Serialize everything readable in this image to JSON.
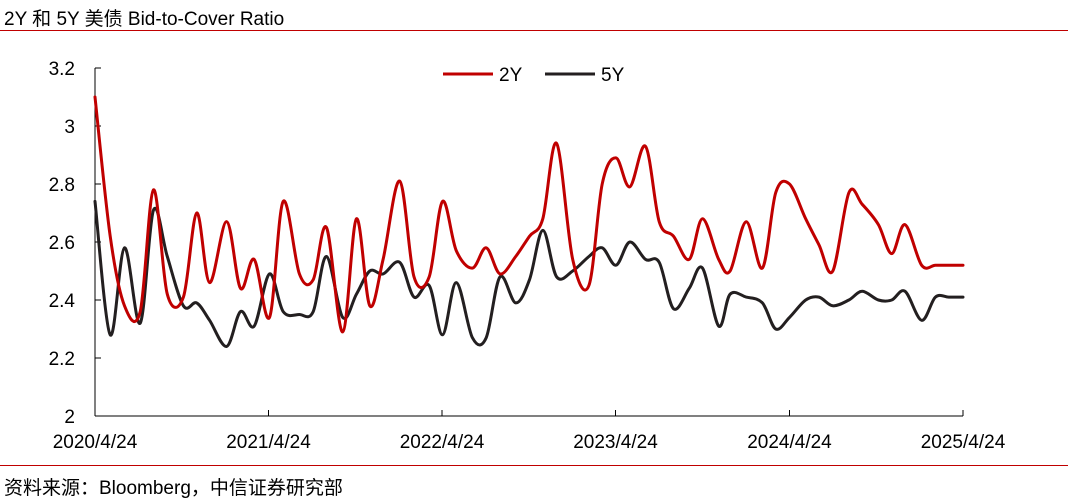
{
  "header": {
    "title": "2Y 和 5Y 美债 Bid-to-Cover Ratio"
  },
  "footer": {
    "source": "资料来源：Bloomberg，中信证券研究部"
  },
  "colors": {
    "rule": "#c00000",
    "series_2y": "#c00000",
    "series_5y": "#231f20",
    "axis": "#000000"
  },
  "chart_data": {
    "type": "line",
    "title": "2Y 和 5Y 美债 Bid-to-Cover Ratio",
    "xlabel": "",
    "ylabel": "",
    "xlim": [
      "2020-04-24",
      "2025-04-24"
    ],
    "ylim": [
      2,
      3.2
    ],
    "yticks": [
      "2",
      "2.2",
      "2.4",
      "2.6",
      "2.8",
      "3",
      "3.2"
    ],
    "xticks": [
      "2020/4/24",
      "2021/4/24",
      "2022/4/24",
      "2023/4/24",
      "2024/4/24",
      "2025/4/24"
    ],
    "grid": false,
    "legend": "top-center",
    "series": [
      {
        "name": "2Y",
        "color": "#c00000",
        "x": [
          "2020-04-24",
          "2020-05-26",
          "2020-06-25",
          "2020-07-28",
          "2020-08-25",
          "2020-09-23",
          "2020-10-27",
          "2020-11-24",
          "2020-12-21",
          "2021-01-26",
          "2021-02-24",
          "2021-03-25",
          "2021-04-26",
          "2021-05-25",
          "2021-06-28",
          "2021-07-27",
          "2021-08-24",
          "2021-09-27",
          "2021-10-26",
          "2021-11-23",
          "2021-12-21",
          "2022-01-25",
          "2022-02-24",
          "2022-03-28",
          "2022-04-25",
          "2022-05-24",
          "2022-06-27",
          "2022-07-26",
          "2022-08-24",
          "2022-09-26",
          "2022-10-25",
          "2022-11-22",
          "2022-12-21",
          "2023-01-24",
          "2023-02-27",
          "2023-03-27",
          "2023-04-25",
          "2023-05-24",
          "2023-06-26",
          "2023-07-25",
          "2023-08-24",
          "2023-09-26",
          "2023-10-24",
          "2023-11-27",
          "2023-12-21",
          "2024-01-24",
          "2024-02-27",
          "2024-03-26",
          "2024-04-24",
          "2024-05-28",
          "2024-06-25",
          "2024-07-24",
          "2024-08-27",
          "2024-09-24",
          "2024-10-28",
          "2024-11-25",
          "2024-12-23",
          "2025-01-27",
          "2025-02-25",
          "2025-03-25",
          "2025-04-24"
        ],
        "y": [
          3.1,
          2.62,
          2.38,
          2.36,
          2.78,
          2.42,
          2.41,
          2.7,
          2.46,
          2.67,
          2.44,
          2.54,
          2.34,
          2.74,
          2.49,
          2.47,
          2.65,
          2.29,
          2.68,
          2.38,
          2.54,
          2.81,
          2.48,
          2.48,
          2.74,
          2.57,
          2.51,
          2.58,
          2.49,
          2.55,
          2.62,
          2.68,
          2.94,
          2.54,
          2.45,
          2.8,
          2.89,
          2.79,
          2.93,
          2.67,
          2.62,
          2.54,
          2.68,
          2.54,
          2.5,
          2.67,
          2.51,
          2.77,
          2.8,
          2.68,
          2.59,
          2.5,
          2.77,
          2.73,
          2.66,
          2.56,
          2.66,
          2.52,
          2.52,
          2.52,
          2.52
        ]
      },
      {
        "name": "5Y",
        "color": "#231f20",
        "x": [
          "2020-04-24",
          "2020-05-26",
          "2020-06-25",
          "2020-07-28",
          "2020-08-25",
          "2020-09-23",
          "2020-10-27",
          "2020-11-24",
          "2020-12-21",
          "2021-01-26",
          "2021-02-24",
          "2021-03-25",
          "2021-04-26",
          "2021-05-25",
          "2021-06-28",
          "2021-07-27",
          "2021-08-24",
          "2021-09-27",
          "2021-10-26",
          "2021-11-23",
          "2021-12-21",
          "2022-01-25",
          "2022-02-24",
          "2022-03-28",
          "2022-04-25",
          "2022-05-24",
          "2022-06-27",
          "2022-07-26",
          "2022-08-24",
          "2022-09-26",
          "2022-10-25",
          "2022-11-22",
          "2022-12-21",
          "2023-01-24",
          "2023-02-27",
          "2023-03-27",
          "2023-04-25",
          "2023-05-24",
          "2023-06-26",
          "2023-07-25",
          "2023-08-24",
          "2023-09-26",
          "2023-10-24",
          "2023-11-27",
          "2023-12-21",
          "2024-01-24",
          "2024-02-27",
          "2024-03-26",
          "2024-04-24",
          "2024-05-28",
          "2024-06-25",
          "2024-07-24",
          "2024-08-27",
          "2024-09-24",
          "2024-10-28",
          "2024-11-25",
          "2024-12-23",
          "2025-01-27",
          "2025-02-25",
          "2025-03-25",
          "2025-04-24"
        ],
        "y": [
          2.74,
          2.28,
          2.58,
          2.32,
          2.71,
          2.55,
          2.38,
          2.39,
          2.33,
          2.24,
          2.36,
          2.31,
          2.49,
          2.36,
          2.35,
          2.36,
          2.55,
          2.34,
          2.42,
          2.5,
          2.49,
          2.53,
          2.41,
          2.45,
          2.28,
          2.46,
          2.27,
          2.27,
          2.48,
          2.39,
          2.47,
          2.64,
          2.48,
          2.5,
          2.55,
          2.58,
          2.52,
          2.6,
          2.54,
          2.53,
          2.37,
          2.44,
          2.51,
          2.31,
          2.42,
          2.41,
          2.39,
          2.3,
          2.34,
          2.4,
          2.41,
          2.38,
          2.4,
          2.43,
          2.4,
          2.4,
          2.43,
          2.33,
          2.41,
          2.41,
          2.41
        ]
      }
    ]
  }
}
